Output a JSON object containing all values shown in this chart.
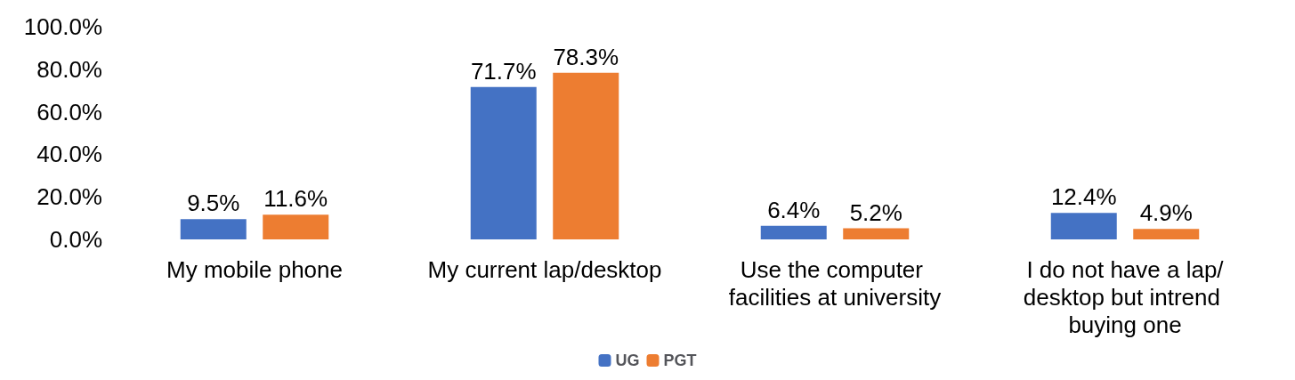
{
  "chart_data": {
    "type": "bar",
    "categories": [
      "My mobile phone",
      "My current lap/desktop",
      "Use the computer facilities at university",
      "I do not have a lap/desktop but intrend buying one"
    ],
    "series": [
      {
        "name": "UG",
        "color": "#4472c4",
        "values": [
          9.5,
          71.7,
          6.4,
          12.4
        ],
        "value_labels": [
          "9.5%",
          "71.7%",
          "6.4%",
          "12.4%"
        ]
      },
      {
        "name": "PGT",
        "color": "#ed7d31",
        "values": [
          11.6,
          78.3,
          5.2,
          4.9
        ],
        "value_labels": [
          "11.6%",
          "78.3%",
          "5.2%",
          "4.9%"
        ]
      }
    ],
    "ylim": [
      0,
      100
    ],
    "yticks": [
      {
        "value": 0,
        "label": "0.0%"
      },
      {
        "value": 20,
        "label": "20.0%"
      },
      {
        "value": 40,
        "label": "40.0%"
      },
      {
        "value": 60,
        "label": "60.0%"
      },
      {
        "value": 80,
        "label": "80.0%"
      },
      {
        "value": 100,
        "label": "100.0%"
      }
    ],
    "grid": false,
    "legend": "bottom"
  }
}
